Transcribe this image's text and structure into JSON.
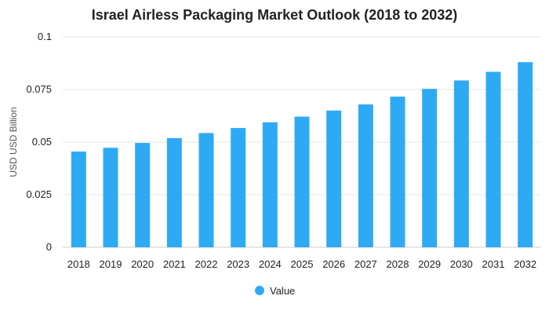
{
  "chart_data": {
    "type": "bar",
    "title": "Israel Airless Packaging Market Outlook (2018 to 2032)",
    "xlabel": "",
    "ylabel": "USD USD Billion",
    "categories": [
      "2018",
      "2019",
      "2020",
      "2021",
      "2022",
      "2023",
      "2024",
      "2025",
      "2026",
      "2027",
      "2028",
      "2029",
      "2030",
      "2031",
      "2032"
    ],
    "series": [
      {
        "name": "Value",
        "color": "#2eaaf5",
        "values": [
          0.0455,
          0.0473,
          0.0496,
          0.0519,
          0.0543,
          0.0567,
          0.0594,
          0.0621,
          0.065,
          0.0679,
          0.0716,
          0.0753,
          0.0793,
          0.0834,
          0.088
        ]
      }
    ],
    "ylim": [
      0,
      0.1
    ],
    "yticks": [
      "0",
      "0.025",
      "0.05",
      "0.075",
      "0.1"
    ],
    "grid": true,
    "legend": "bottom"
  }
}
